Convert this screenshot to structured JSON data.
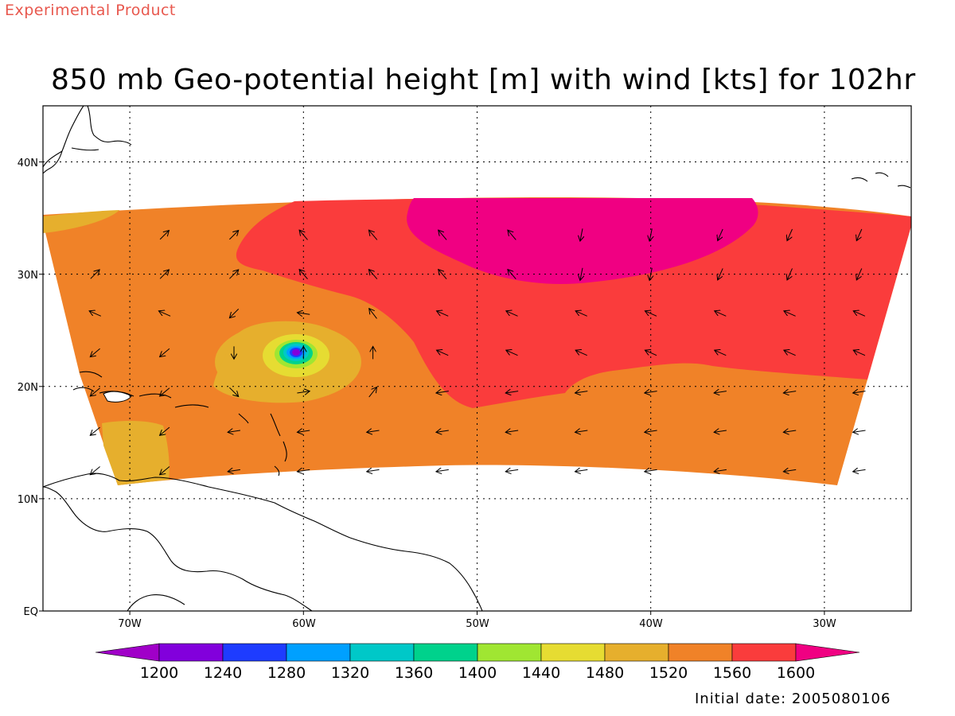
{
  "header": {
    "experimental_label": "Experimental Product",
    "title": "850 mb Geo-potential height [m] with wind [kts] for 102hr"
  },
  "map": {
    "projection": "lat-lon",
    "lon_range": [
      -75,
      -25
    ],
    "lat_range": [
      0,
      45
    ],
    "grid": true,
    "lat_ticks": [
      {
        "label": "EQ",
        "lat": 0
      },
      {
        "label": "10N",
        "lat": 10
      },
      {
        "label": "20N",
        "lat": 20
      },
      {
        "label": "30N",
        "lat": 30
      },
      {
        "label": "40N",
        "lat": 40
      }
    ],
    "lon_ticks": [
      {
        "label": "70W",
        "lon": -70
      },
      {
        "label": "60W",
        "lon": -60
      },
      {
        "label": "50W",
        "lon": -50
      },
      {
        "label": "40W",
        "lon": -40
      },
      {
        "label": "30W",
        "lon": -30
      }
    ],
    "low_center": {
      "lon": -60.5,
      "lat": 23
    },
    "field_colors": {
      "1200": "#9b00d8",
      "1240": "#7a00e0",
      "1280": "#2040ff",
      "1320": "#00a0ff",
      "1360": "#00c8c8",
      "1400": "#00d080",
      "1440": "#a0e632",
      "1480": "#e6dc32",
      "1520": "#e6af2d",
      "1560": "#f08228",
      "1600": "#fa3c3c",
      "above": "#f00082"
    }
  },
  "colorbar": {
    "labels": [
      "1200",
      "1240",
      "1280",
      "1320",
      "1360",
      "1400",
      "1440",
      "1480",
      "1520",
      "1560",
      "1600"
    ],
    "colors": [
      "#a000c8",
      "#8200dc",
      "#1e3cff",
      "#00a0ff",
      "#00c8c8",
      "#00d28c",
      "#a0e632",
      "#e6dc32",
      "#e6af2d",
      "#f08228",
      "#fa3c3c",
      "#f00082"
    ]
  },
  "footer": {
    "initial_date": "Initial date: 2005080106"
  }
}
